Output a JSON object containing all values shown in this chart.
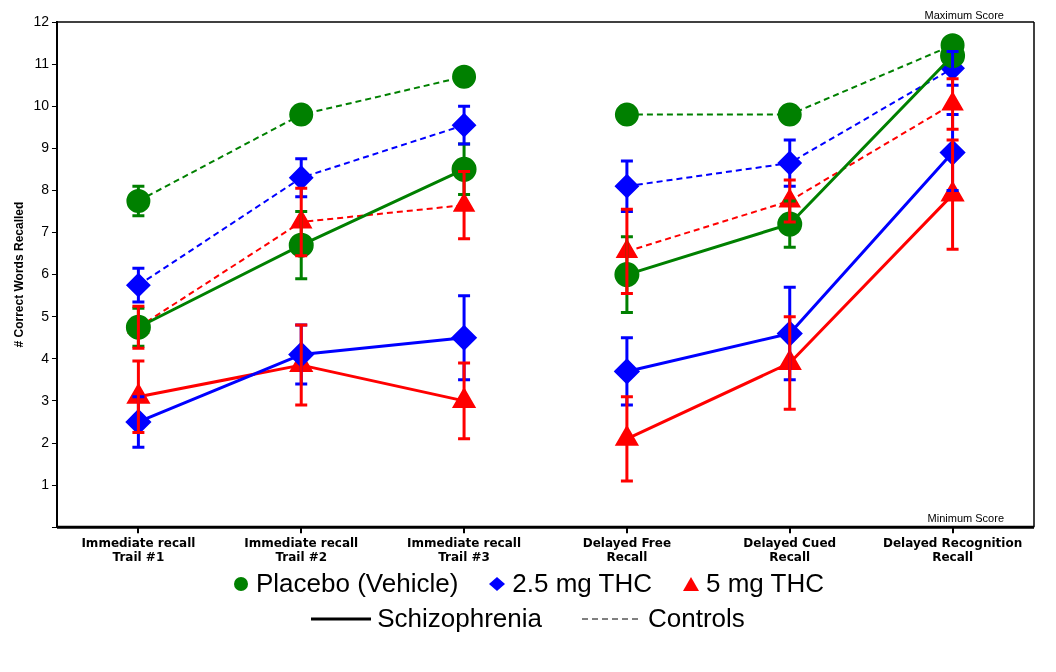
{
  "chart_data": {
    "type": "line",
    "ylabel": "# Correct Words Recalled",
    "categories": [
      "Immediate recall\nTrail #1",
      "Immediate recall\nTrail #2",
      "Immediate recall\nTrail #3",
      "Delayed Free\nRecall",
      "Delayed Cued\nRecall",
      "Delayed Recognition\nRecall"
    ],
    "ylim": [
      0,
      12
    ],
    "yticks": [
      {
        "value": 0,
        "label": null
      },
      1,
      2,
      3,
      4,
      5,
      6,
      7,
      8,
      9,
      10,
      11,
      12
    ],
    "grid": false,
    "legend": "bottom",
    "ref_lines": [
      {
        "axis": "y",
        "value": 12,
        "label": "Maximum Score"
      }
    ],
    "annotations": [
      "Minimum Score",
      "Schizophrenia",
      "Controls"
    ],
    "series": [
      {
        "name": "Placebo (Vehicle)",
        "color": "#008000",
        "marker": "circle",
        "line_style": "solid",
        "x": [
          "Immediate recall\nTrail #1",
          "Immediate recall\nTrail #2",
          "Immediate recall\nTrail #3"
        ],
        "values": [
          4.75,
          6.7,
          8.5
        ],
        "errors": [
          0.45,
          0.8,
          0.6
        ]
      },
      {
        "color": "#008000",
        "marker": "circle",
        "line_style": "solid",
        "x": [
          "Delayed Free\nRecall",
          "Delayed Cued\nRecall",
          "Delayed Recognition\nRecall"
        ],
        "values": [
          6.0,
          7.2,
          11.2
        ],
        "errors": [
          0.9,
          0.55,
          null
        ]
      },
      {
        "name": "2.5 mg THC",
        "color": "#0000ff",
        "marker": "diamond",
        "line_style": "solid",
        "x": [
          "Immediate recall\nTrail #1",
          "Immediate recall\nTrail #2",
          "Immediate recall\nTrail #3"
        ],
        "values": [
          2.5,
          4.1,
          4.5
        ],
        "errors": [
          0.6,
          0.7,
          1.0
        ]
      },
      {
        "color": "#0000ff",
        "marker": "diamond",
        "line_style": "solid",
        "x": [
          "Delayed Free\nRecall",
          "Delayed Cued\nRecall",
          "Delayed Recognition\nRecall"
        ],
        "values": [
          3.7,
          4.6,
          8.9
        ],
        "errors": [
          0.8,
          1.1,
          0.9
        ]
      },
      {
        "name": "5 mg THC",
        "color": "#ff0000",
        "marker": "triangle",
        "line_style": "solid",
        "x": [
          "Immediate recall\nTrail #1",
          "Immediate recall\nTrail #2",
          "Immediate recall\nTrail #3"
        ],
        "values": [
          3.1,
          3.85,
          3.0
        ],
        "errors": [
          0.85,
          0.95,
          0.9
        ]
      },
      {
        "color": "#ff0000",
        "marker": "triangle",
        "line_style": "solid",
        "x": [
          "Delayed Free\nRecall",
          "Delayed Cued\nRecall",
          "Delayed Recognition\nRecall"
        ],
        "values": [
          2.1,
          3.9,
          7.9
        ],
        "errors": [
          1.0,
          1.1,
          1.3
        ]
      },
      {
        "color": "#008000",
        "marker": "circle",
        "line_style": "dashed",
        "x": [
          "Immediate recall\nTrail #1",
          "Immediate recall\nTrail #2",
          "Immediate recall\nTrail #3"
        ],
        "values": [
          7.75,
          9.8,
          10.7
        ],
        "errors": [
          0.35,
          null,
          null
        ]
      },
      {
        "color": "#008000",
        "marker": "circle",
        "line_style": "dashed",
        "x": [
          "Delayed Free\nRecall",
          "Delayed Cued\nRecall",
          "Delayed Recognition\nRecall"
        ],
        "values": [
          9.8,
          9.8,
          11.45
        ],
        "errors": [
          null,
          null,
          null
        ]
      },
      {
        "color": "#0000ff",
        "marker": "diamond",
        "line_style": "dashed",
        "x": [
          "Immediate recall\nTrail #1",
          "Immediate recall\nTrail #2",
          "Immediate recall\nTrail #3"
        ],
        "values": [
          5.75,
          8.3,
          9.55
        ],
        "errors": [
          0.4,
          0.45,
          0.45
        ]
      },
      {
        "color": "#0000ff",
        "marker": "diamond",
        "line_style": "dashed",
        "x": [
          "Delayed Free\nRecall",
          "Delayed Cued\nRecall",
          "Delayed Recognition\nRecall"
        ],
        "values": [
          8.1,
          8.65,
          10.9
        ],
        "errors": [
          0.6,
          0.55,
          0.4
        ]
      },
      {
        "color": "#ff0000",
        "marker": "triangle",
        "line_style": "dashed",
        "x": [
          "Immediate recall\nTrail #1",
          "Immediate recall\nTrail #2",
          "Immediate recall\nTrail #3"
        ],
        "values": [
          4.75,
          7.25,
          7.65
        ],
        "errors": [
          0.5,
          0.8,
          0.8
        ]
      },
      {
        "color": "#ff0000",
        "marker": "triangle",
        "line_style": "dashed",
        "x": [
          "Delayed Free\nRecall",
          "Delayed Cued\nRecall",
          "Delayed Recognition\nRecall"
        ],
        "values": [
          6.55,
          7.75,
          10.05
        ],
        "errors": [
          1.0,
          0.5,
          0.6
        ]
      }
    ]
  }
}
